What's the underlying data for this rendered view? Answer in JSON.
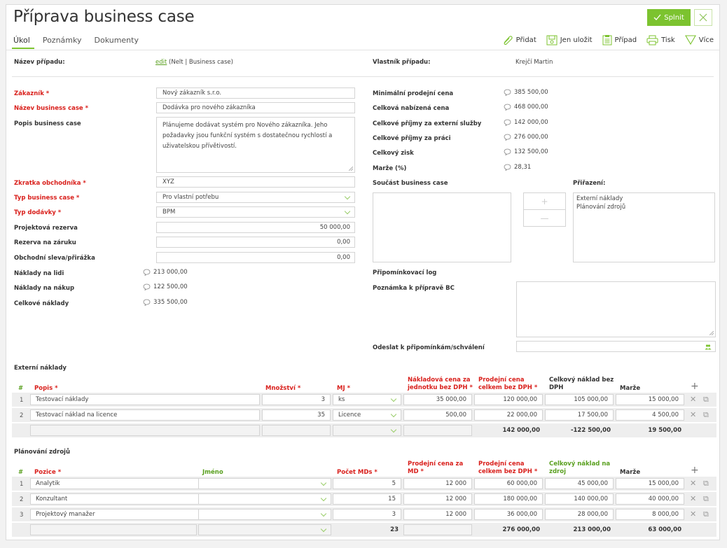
{
  "header": {
    "title": "Příprava business case",
    "complete_label": "Splnit",
    "tabs": [
      "Úkol",
      "Poznámky",
      "Dokumenty"
    ],
    "toolbar": {
      "add": "Přidat",
      "save_only": "Jen uložit",
      "case": "Případ",
      "print": "Tisk",
      "more": "Více"
    }
  },
  "info": {
    "case_name_label": "Název případu:",
    "case_name_link": "edit",
    "case_name_value": "(Nelt | Business case)",
    "owner_label": "Vlastník případu:",
    "owner_value": "Krejčí Martin"
  },
  "form": {
    "customer_label": "Zákazník *",
    "customer_value": "Nový zákazník s.r.o.",
    "bc_name_label": "Název business case *",
    "bc_name_value": "Dodávka pro nového zákazníka",
    "description_label": "Popis business case",
    "description_value": "Plánujeme dodávat systém pro Nového zákazníka. Jeho požadavky jsou funkční systém s dostatečnou rychlostí a uživatelskou přívětivostí.",
    "salesman_label": "Zkratka obchodníka *",
    "salesman_value": "XYZ",
    "bc_type_label": "Typ business case *",
    "bc_type_value": "Pro vlastní potřebu",
    "delivery_type_label": "Typ dodávky *",
    "delivery_type_value": "BPM",
    "project_reserve_label": "Projektová rezerva",
    "project_reserve_value": "50 000,00",
    "warranty_reserve_label": "Rezerva na záruku",
    "warranty_reserve_value": "0,00",
    "discount_label": "Obchodní sleva/přirážka",
    "discount_value": "0,00",
    "people_costs_label": "Náklady na lidi",
    "people_costs_value": "213 000,00",
    "purchase_costs_label": "Náklady na nákup",
    "purchase_costs_value": "122 500,00",
    "total_costs_label": "Celkové náklady",
    "total_costs_value": "335 500,00"
  },
  "summary": {
    "min_price_label": "Minimální prodejní cena",
    "min_price_value": "385 500,00",
    "offered_price_label": "Celková nabízená cena",
    "offered_price_value": "468 000,00",
    "ext_income_label": "Celkové příjmy za externí služby",
    "ext_income_value": "142 000,00",
    "work_income_label": "Celkové příjmy za práci",
    "work_income_value": "276 000,00",
    "profit_label": "Celkový zisk",
    "profit_value": "132 500,00",
    "margin_label": "Marže (%)",
    "margin_value": "28,31",
    "part_of_bc_label": "Součást business case",
    "assignment_label": "Přiřazení:",
    "assignment_items": [
      "Externí náklady",
      "Plánování zdrojů"
    ],
    "comment_log_label": "Připomínkovací log",
    "note_label": "Poznámka k přípravě BC",
    "send_label": "Odeslat k připomínkám/schválení"
  },
  "external_costs": {
    "title": "Externí náklady",
    "headers": {
      "num": "#",
      "desc": "Popis *",
      "qty": "Množství *",
      "unit": "MJ *",
      "cost_line1": "Nákladová cena za",
      "cost_line2": "jednotku bez DPH *",
      "sale_line1": "Prodejní cena",
      "sale_line2": "celkem bez DPH *",
      "total_cost_line1": "Celkový náklad bez",
      "total_cost_line2": "DPH",
      "margin": "Marže"
    },
    "rows": [
      {
        "num": "1",
        "desc": "Testovací náklady",
        "qty": "3",
        "unit": "ks",
        "cost": "35 000,00",
        "sale": "120 000,00",
        "total_cost": "105 000,00",
        "margin": "15 000,00"
      },
      {
        "num": "2",
        "desc": "Testovací náklad na licence",
        "qty": "35",
        "unit": "Licence",
        "cost": "500,00",
        "sale": "22 000,00",
        "total_cost": "17 500,00",
        "margin": "4 500,00"
      }
    ],
    "totals": {
      "sale": "142 000,00",
      "total_cost": "-122 500,00",
      "margin": "19 500,00"
    }
  },
  "resource_planning": {
    "title": "Plánování zdrojů",
    "headers": {
      "num": "#",
      "position": "Pozice *",
      "name": "Jméno",
      "mds": "Počet MDs *",
      "md_price_line1": "Prodejní cena za",
      "md_price_line2": "MD *",
      "sale_line1": "Prodejní cena",
      "sale_line2": "celkem bez DPH *",
      "res_cost_line1": "Celkový náklad na",
      "res_cost_line2": "zdroj",
      "margin": "Marže"
    },
    "rows": [
      {
        "num": "1",
        "position": "Analytik",
        "mds": "5",
        "md_price": "12 000",
        "sale": "60 000,00",
        "res_cost": "45 000,00",
        "margin": "15 000,00"
      },
      {
        "num": "2",
        "position": "Konzultant",
        "mds": "15",
        "md_price": "12 000",
        "sale": "180 000,00",
        "res_cost": "140 000,00",
        "margin": "40 000,00"
      },
      {
        "num": "3",
        "position": "Projektový manažer",
        "mds": "3",
        "md_price": "12 000",
        "sale": "36 000,00",
        "res_cost": "28 000,00",
        "margin": "8 000,00"
      }
    ],
    "totals": {
      "mds": "23",
      "sale": "276 000,00",
      "res_cost": "213 000,00",
      "margin": "63 000,00"
    }
  },
  "colors": {
    "accent": "#7cc32f",
    "required": "#d9201c",
    "link": "#5aa020"
  }
}
